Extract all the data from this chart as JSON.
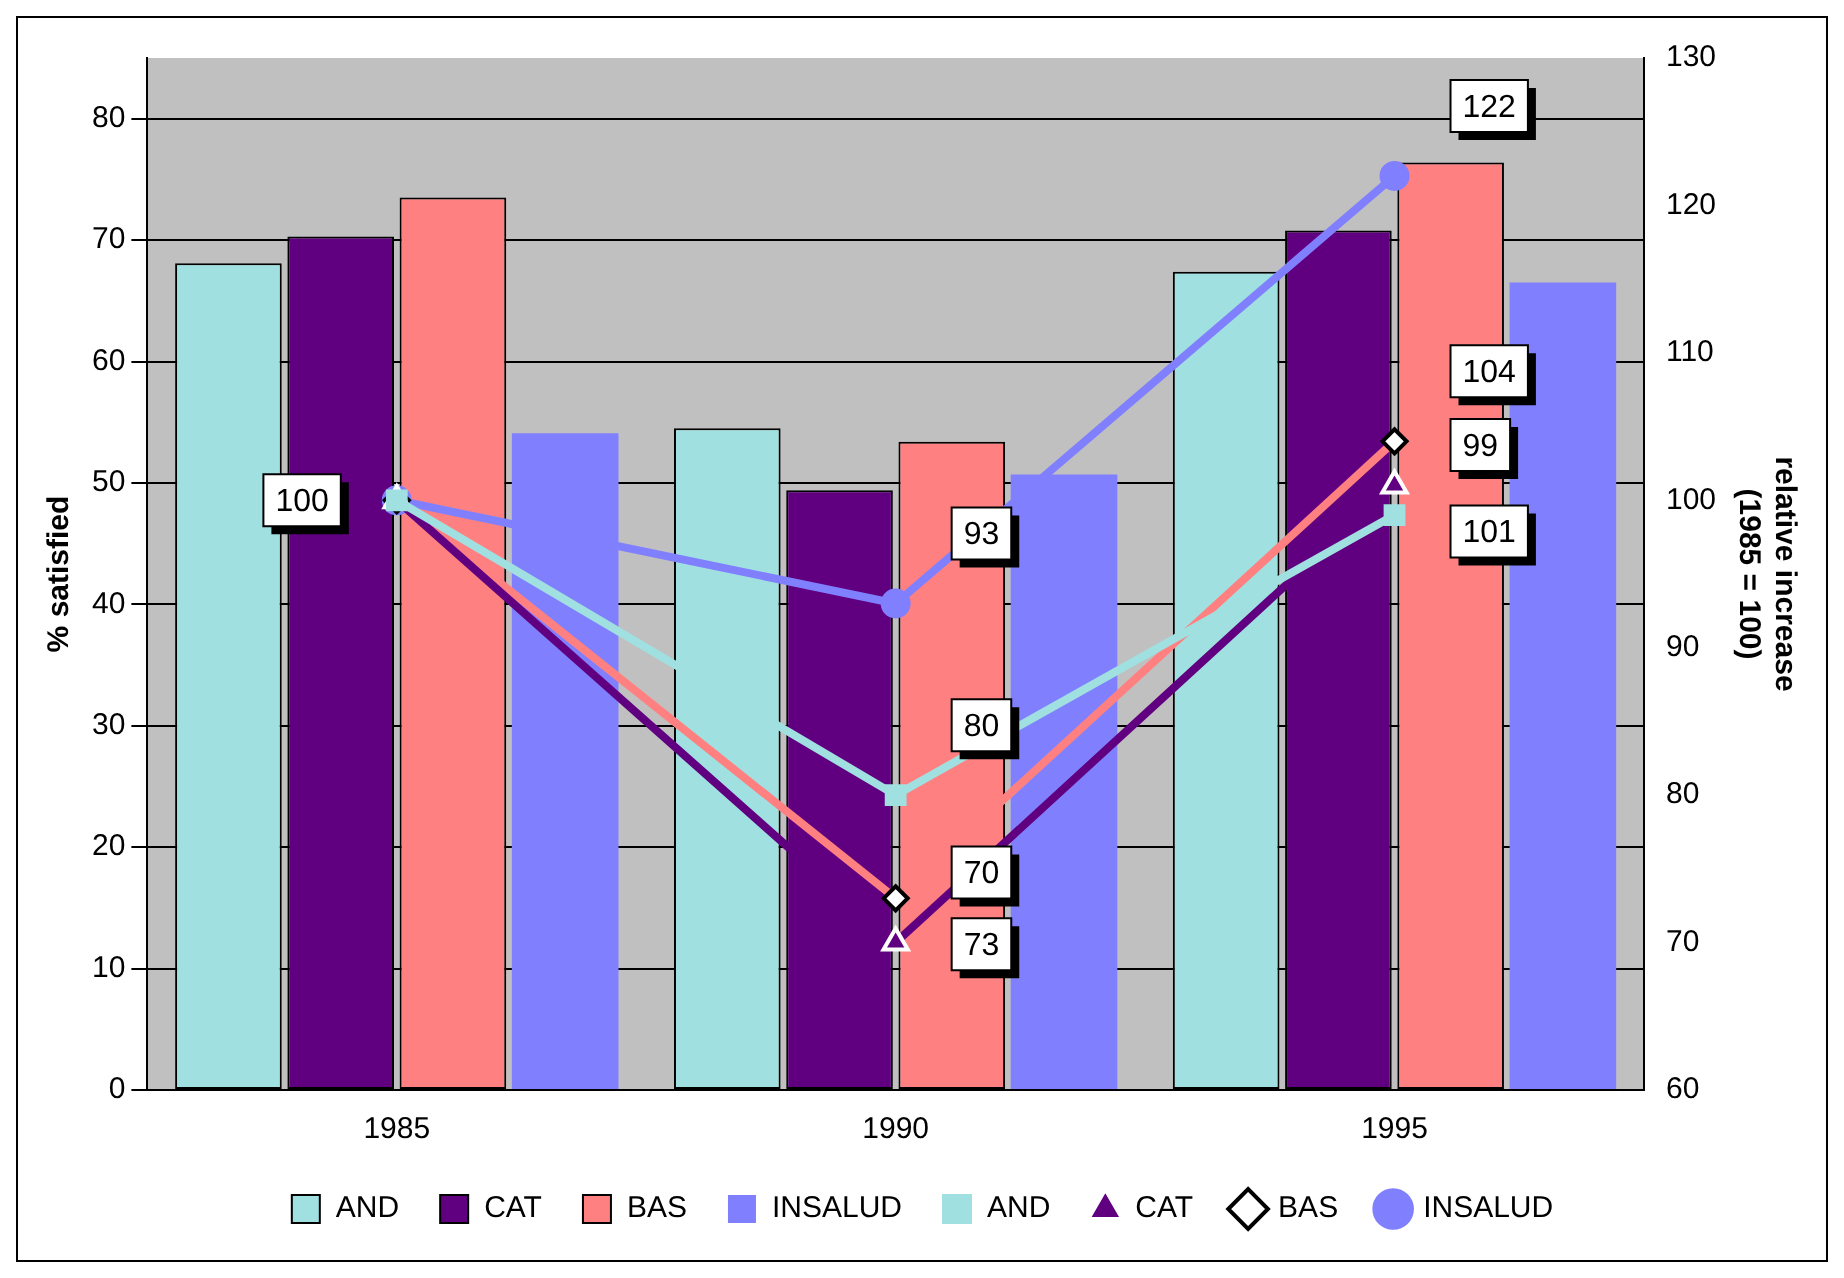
{
  "chart_data": {
    "type": "bar",
    "ylabel": "% satisfied",
    "y2label": "relative increase\n(1985 = 100)",
    "categories": [
      "1985",
      "1990",
      "1995"
    ],
    "series": [
      {
        "name": "AND",
        "color": "#a0e0e0",
        "values": [
          68.1,
          54.5,
          67.4
        ]
      },
      {
        "name": "CAT",
        "color": "#600080",
        "values": [
          70.3,
          49.4,
          70.8
        ]
      },
      {
        "name": "BAS",
        "color": "#ff8080",
        "values": [
          73.5,
          53.4,
          76.4
        ]
      },
      {
        "name": "INSALUD",
        "color": "#8080ff",
        "values": [
          54.1,
          50.7,
          66.5
        ]
      },
      {
        "name": "AND",
        "type": "line",
        "axis": "y2",
        "marker": "square",
        "color": "#a0e0e0",
        "values": [
          100,
          80,
          99
        ],
        "value_labels": [
          "100",
          "80",
          "99"
        ]
      },
      {
        "name": "CAT",
        "type": "line",
        "axis": "y2",
        "marker": "triangle",
        "color": "#600080",
        "values": [
          100,
          70,
          101
        ],
        "value_labels": [
          null,
          "70",
          "101"
        ]
      },
      {
        "name": "BAS",
        "type": "line",
        "axis": "y2",
        "marker": "diamond",
        "color": "#ff8080",
        "values": [
          100,
          73,
          104
        ],
        "value_labels": [
          null,
          "73",
          "104"
        ]
      },
      {
        "name": "INSALUD",
        "type": "line",
        "axis": "y2",
        "marker": "circle",
        "color": "#8080ff",
        "values": [
          100,
          93,
          122
        ],
        "value_labels": [
          null,
          "93",
          "122"
        ]
      }
    ],
    "ylim": [
      0,
      85
    ],
    "yticks": [
      0,
      10,
      20,
      30,
      40,
      50,
      60,
      70,
      80
    ],
    "y2lim": [
      60,
      130
    ],
    "y2ticks": [
      60,
      70,
      80,
      90,
      100,
      110,
      120,
      130
    ],
    "grid": "y",
    "legend": "bottom"
  }
}
